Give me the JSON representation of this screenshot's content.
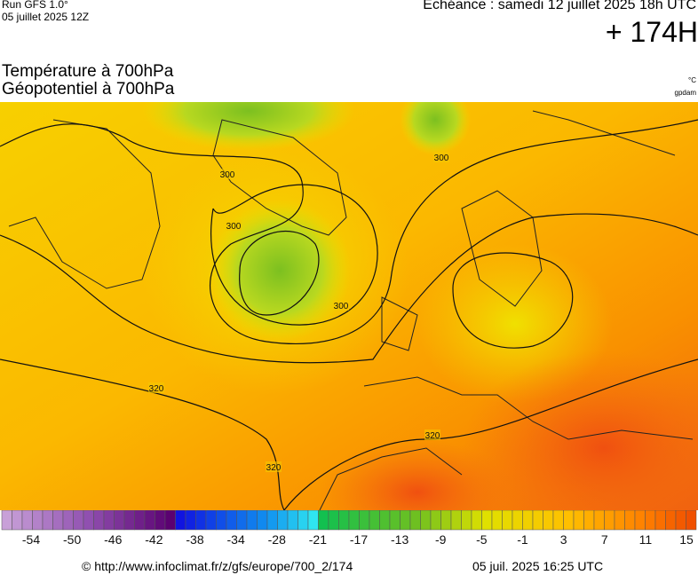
{
  "header": {
    "run": "Run GFS 1.0°",
    "run_date": "05 juillet 2025 12Z",
    "echeance": "Echéance : samedi 12 juillet 2025 18h UTC",
    "lead": "+ 174H",
    "title_line1": "Température à 700hPa",
    "title_line2": "Géopotentiel à 700hPa",
    "unit_temp": "°C",
    "unit_geo": "gpdam"
  },
  "map": {
    "contour_labels": [
      "300",
      "300",
      "300",
      "300",
      "320",
      "320",
      "320"
    ]
  },
  "colorbar": {
    "labels": [
      "-54",
      "-50",
      "-46",
      "-42",
      "-38",
      "-34",
      "-28",
      "-21",
      "-17",
      "-13",
      "-9",
      "-5",
      "-1",
      "3",
      "7",
      "11",
      "15"
    ]
  },
  "footer": {
    "url": "© http://www.infoclimat.fr/z/gfs/europe/700_2/174",
    "timestamp": "05 juil. 2025 16:25 UTC"
  }
}
